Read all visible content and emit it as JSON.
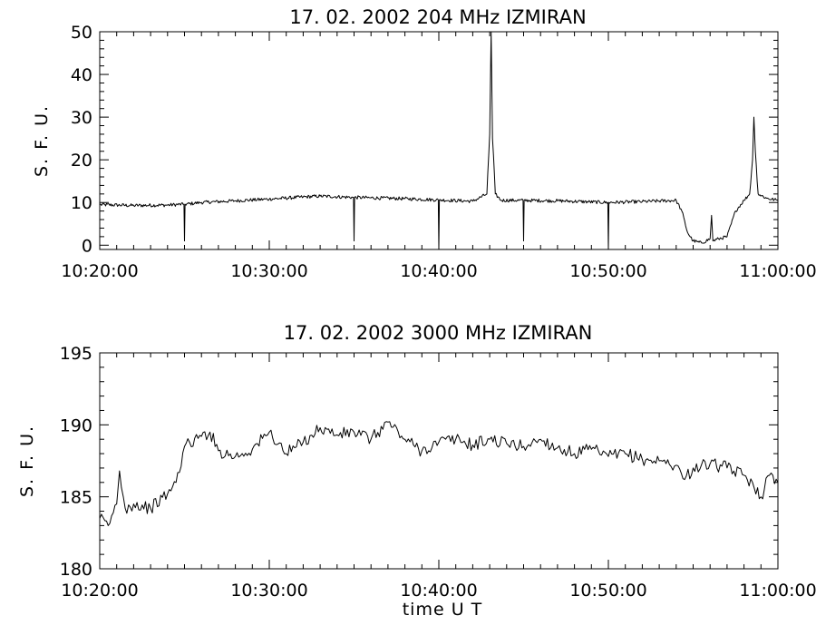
{
  "chart_data": [
    {
      "type": "line",
      "title": "17.  02.  2002    204  MHz    IZMIRAN",
      "ylabel": "S. F. U.",
      "xlabel": "",
      "xlim": [
        "10:20:00",
        "11:00:00"
      ],
      "ylim": [
        -1,
        50
      ],
      "x_ticks": [
        "10:20:00",
        "10:30:00",
        "10:40:00",
        "10:50:00",
        "11:00:00"
      ],
      "y_ticks": [
        "0",
        "10",
        "20",
        "30",
        "40",
        "50"
      ],
      "grid": false,
      "series": [
        {
          "points": [
            [
              "10:20:00",
              9.5
            ],
            [
              "10:22:00",
              9.3
            ],
            [
              "10:24:00",
              9.4
            ],
            [
              "10:24:58",
              9.6
            ],
            [
              "10:25:00",
              1.0
            ],
            [
              "10:25:02",
              9.6
            ],
            [
              "10:26:00",
              10.0
            ],
            [
              "10:28:00",
              10.4
            ],
            [
              "10:30:00",
              10.8
            ],
            [
              "10:32:00",
              11.3
            ],
            [
              "10:33:00",
              11.5
            ],
            [
              "10:34:58",
              11.2
            ],
            [
              "10:35:00",
              1.0
            ],
            [
              "10:35:02",
              11.2
            ],
            [
              "10:36:00",
              11.1
            ],
            [
              "10:38:00",
              10.9
            ],
            [
              "10:39:58",
              10.6
            ],
            [
              "10:40:00",
              -1.0
            ],
            [
              "10:40:02",
              10.6
            ],
            [
              "10:42:00",
              10.3
            ],
            [
              "10:42:50",
              12.0
            ],
            [
              "10:43:00",
              26.0
            ],
            [
              "10:43:05",
              50.0
            ],
            [
              "10:43:10",
              25.0
            ],
            [
              "10:43:20",
              12.0
            ],
            [
              "10:43:40",
              10.5
            ],
            [
              "10:44:58",
              10.5
            ],
            [
              "10:45:00",
              1.0
            ],
            [
              "10:45:02",
              10.5
            ],
            [
              "10:47:00",
              10.4
            ],
            [
              "10:49:58",
              10.0
            ],
            [
              "10:50:00",
              -1.0
            ],
            [
              "10:50:02",
              10.0
            ],
            [
              "10:52:00",
              10.2
            ],
            [
              "10:54:00",
              10.5
            ],
            [
              "10:54:20",
              8.0
            ],
            [
              "10:54:40",
              3.0
            ],
            [
              "10:55:00",
              1.0
            ],
            [
              "10:55:30",
              0.5
            ],
            [
              "10:56:00",
              1.5
            ],
            [
              "10:56:05",
              7.0
            ],
            [
              "10:56:10",
              1.0
            ],
            [
              "10:56:30",
              1.5
            ],
            [
              "10:57:00",
              2.0
            ],
            [
              "10:57:30",
              8.0
            ],
            [
              "10:58:00",
              10.5
            ],
            [
              "10:58:20",
              12.0
            ],
            [
              "10:58:30",
              20.0
            ],
            [
              "10:58:35",
              30.0
            ],
            [
              "10:58:40",
              22.0
            ],
            [
              "10:58:50",
              12.0
            ],
            [
              "10:59:20",
              11.0
            ],
            [
              "11:00:00",
              10.5
            ]
          ]
        }
      ]
    },
    {
      "type": "line",
      "title": "17.  02.  2002    3000  MHz    IZMIRAN",
      "ylabel": "S. F. U.",
      "xlabel": "time   U T",
      "xlim": [
        "10:20:00",
        "11:00:00"
      ],
      "ylim": [
        180,
        195
      ],
      "x_ticks": [
        "10:20:00",
        "10:30:00",
        "10:40:00",
        "10:50:00",
        "11:00:00"
      ],
      "y_ticks": [
        "180",
        "185",
        "190",
        "195"
      ],
      "grid": false,
      "series": [
        {
          "points": [
            [
              "10:20:00",
              183.5
            ],
            [
              "10:20:30",
              183.0
            ],
            [
              "10:21:00",
              184.5
            ],
            [
              "10:21:10",
              186.8
            ],
            [
              "10:21:30",
              184.2
            ],
            [
              "10:22:00",
              184.5
            ],
            [
              "10:23:00",
              184.2
            ],
            [
              "10:24:00",
              185.2
            ],
            [
              "10:24:30",
              186.0
            ],
            [
              "10:25:00",
              188.5
            ],
            [
              "10:26:00",
              189.2
            ],
            [
              "10:26:30",
              189.5
            ],
            [
              "10:27:00",
              188.2
            ],
            [
              "10:28:00",
              187.8
            ],
            [
              "10:29:00",
              188.3
            ],
            [
              "10:30:00",
              189.5
            ],
            [
              "10:31:00",
              188.0
            ],
            [
              "10:32:00",
              188.8
            ],
            [
              "10:33:00",
              189.8
            ],
            [
              "10:34:00",
              189.3
            ],
            [
              "10:35:00",
              189.5
            ],
            [
              "10:36:00",
              189.0
            ],
            [
              "10:37:00",
              190.2
            ],
            [
              "10:38:00",
              189.0
            ],
            [
              "10:39:00",
              188.2
            ],
            [
              "10:40:00",
              188.8
            ],
            [
              "10:41:00",
              189.0
            ],
            [
              "10:42:00",
              188.6
            ],
            [
              "10:43:00",
              189.0
            ],
            [
              "10:44:00",
              188.7
            ],
            [
              "10:45:00",
              188.5
            ],
            [
              "10:46:00",
              189.0
            ],
            [
              "10:47:00",
              188.4
            ],
            [
              "10:48:00",
              188.0
            ],
            [
              "10:49:00",
              188.3
            ],
            [
              "10:50:00",
              187.8
            ],
            [
              "10:51:00",
              188.0
            ],
            [
              "10:52:00",
              187.6
            ],
            [
              "10:53:00",
              187.5
            ],
            [
              "10:54:00",
              187.2
            ],
            [
              "10:54:30",
              186.2
            ],
            [
              "10:55:00",
              187.0
            ],
            [
              "10:56:00",
              187.3
            ],
            [
              "10:57:00",
              187.0
            ],
            [
              "10:58:00",
              186.5
            ],
            [
              "10:58:30",
              186.0
            ],
            [
              "10:59:00",
              185.0
            ],
            [
              "10:59:30",
              186.5
            ],
            [
              "11:00:00",
              186.0
            ]
          ]
        }
      ]
    }
  ]
}
